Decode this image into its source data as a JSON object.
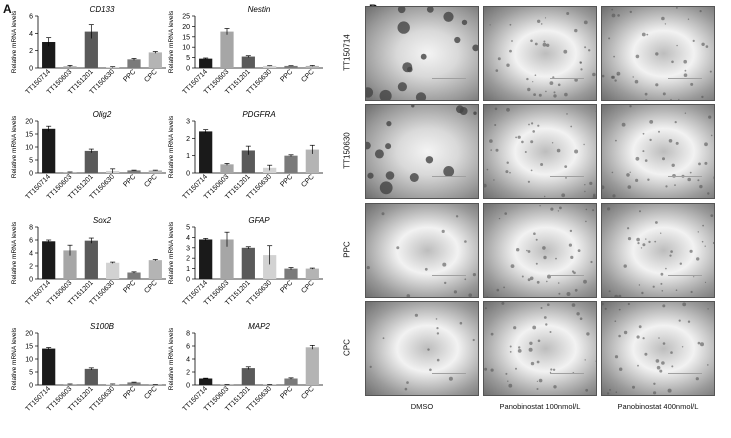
{
  "figure": {
    "panel_a_label": "A",
    "panel_b_label": "B"
  },
  "chart_data": [
    {
      "type": "bar",
      "title": "CD133",
      "ylabel": "Relative mRNA levels",
      "categories": [
        "TT150714",
        "TT150603",
        "TT151201",
        "TT150630",
        "PPC",
        "CPC"
      ],
      "values": [
        3.0,
        0.2,
        4.2,
        0.1,
        1.0,
        1.8
      ],
      "errors": [
        0.5,
        0.1,
        0.8,
        0.05,
        0.1,
        0.1
      ],
      "ylim": [
        0,
        6
      ],
      "yticks": [
        0,
        2,
        4,
        6
      ]
    },
    {
      "type": "bar",
      "title": "Nestin",
      "ylabel": "Relative mRNA levels",
      "categories": [
        "TT150714",
        "TT150603",
        "TT151201",
        "TT150630",
        "PPC",
        "CPC"
      ],
      "values": [
        4.5,
        17.5,
        5.5,
        1.0,
        1.0,
        1.0
      ],
      "errors": [
        0.3,
        1.5,
        0.4,
        0.1,
        0.1,
        0.2
      ],
      "ylim": [
        0,
        25
      ],
      "yticks": [
        0,
        5,
        10,
        15,
        20,
        25
      ]
    },
    {
      "type": "bar",
      "title": "Olig2",
      "ylabel": "Relative mRNA levels",
      "categories": [
        "TT150714",
        "TT150603",
        "TT151201",
        "TT150630",
        "PPC",
        "CPC"
      ],
      "values": [
        17,
        0.3,
        8.5,
        0.8,
        1.0,
        1.0
      ],
      "errors": [
        1.0,
        0.1,
        0.7,
        0.8,
        0.1,
        0.1
      ],
      "ylim": [
        0,
        20
      ],
      "yticks": [
        0,
        5,
        10,
        15,
        20
      ]
    },
    {
      "type": "bar",
      "title": "PDGFRA",
      "ylabel": "Relative mRNA levels",
      "categories": [
        "TT150714",
        "TT150603",
        "TT151201",
        "TT150630",
        "PPC",
        "CPC"
      ],
      "values": [
        2.4,
        0.5,
        1.3,
        0.3,
        1.0,
        1.35
      ],
      "errors": [
        0.1,
        0.05,
        0.25,
        0.15,
        0.05,
        0.25
      ],
      "ylim": [
        0,
        3
      ],
      "yticks": [
        0,
        1,
        2,
        3
      ]
    },
    {
      "type": "bar",
      "title": "Sox2",
      "ylabel": "Relative mRNA levels",
      "categories": [
        "TT150714",
        "TT150603",
        "TT151201",
        "TT150630",
        "PPC",
        "CPC"
      ],
      "values": [
        5.8,
        4.4,
        5.9,
        2.5,
        1.0,
        2.9
      ],
      "errors": [
        0.2,
        0.8,
        0.4,
        0.1,
        0.1,
        0.1
      ],
      "ylim": [
        0,
        8
      ],
      "yticks": [
        0,
        2,
        4,
        6,
        8
      ]
    },
    {
      "type": "bar",
      "title": "GFAP",
      "ylabel": "Relative mRNA levels",
      "categories": [
        "TT150714",
        "TT150603",
        "TT151201",
        "TT150630",
        "PPC",
        "CPC"
      ],
      "values": [
        3.8,
        3.8,
        3.0,
        2.3,
        1.0,
        1.0
      ],
      "errors": [
        0.1,
        0.7,
        0.1,
        0.9,
        0.1,
        0.05
      ],
      "ylim": [
        0,
        5
      ],
      "yticks": [
        0,
        1,
        2,
        3,
        4,
        5
      ]
    },
    {
      "type": "bar",
      "title": "S100B",
      "ylabel": "Relative mRNA levels",
      "categories": [
        "TT150714",
        "TT150603",
        "TT151201",
        "TT150630",
        "PPC",
        "CPC"
      ],
      "values": [
        14,
        0.3,
        6.2,
        0.3,
        1.0,
        0.1
      ],
      "errors": [
        0.4,
        0.1,
        0.4,
        0.1,
        0.1,
        0.05
      ],
      "ylim": [
        0,
        20
      ],
      "yticks": [
        0,
        5,
        10,
        15,
        20
      ]
    },
    {
      "type": "bar",
      "title": "MAP2",
      "ylabel": "Relative mRNA levels",
      "categories": [
        "TT150714",
        "TT150603",
        "TT151201",
        "TT150630",
        "PPC",
        "CPC"
      ],
      "values": [
        1.0,
        0.05,
        2.6,
        0.05,
        1.0,
        5.8
      ],
      "errors": [
        0.05,
        0.02,
        0.2,
        0.02,
        0.1,
        0.3
      ],
      "ylim": [
        0,
        8
      ],
      "yticks": [
        0,
        2,
        4,
        6,
        8
      ]
    }
  ],
  "bar_colors": [
    "#1a1a1a",
    "#a6a6a6",
    "#5a5a5a",
    "#d2d2d2",
    "#7a7a7a",
    "#b4b4b4"
  ],
  "panel_b": {
    "row_labels": [
      "TT150714",
      "TT150630",
      "PPC",
      "CPC"
    ],
    "col_labels": [
      "DMSO",
      "Panobinostat 100nmol/L",
      "Panobinostat 400nmol/L"
    ]
  }
}
